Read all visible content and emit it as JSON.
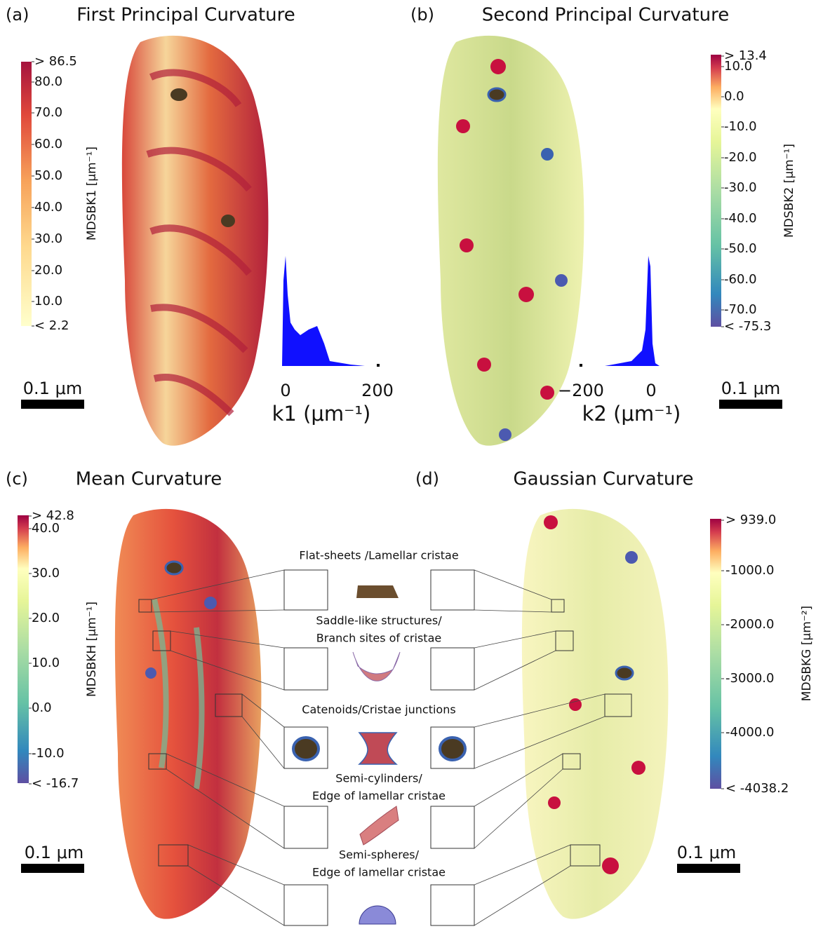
{
  "panels": [
    {
      "label": "(a)",
      "title": "First Principal Curvature",
      "colorbar_label": "MDSBK1 [μm⁻¹]",
      "colorbar_ticks": [
        "> 86.5",
        "80.0",
        "70.0",
        "60.0",
        "50.0",
        "40.0",
        "30.0",
        "20.0",
        "10.0",
        "< 2.2"
      ],
      "scale_bar": "0.1 μm",
      "histogram": {
        "ticks": [
          "0",
          "200"
        ],
        "xlabel": "k1 (μm⁻¹)"
      }
    },
    {
      "label": "(b)",
      "title": "Second Principal Curvature",
      "colorbar_label": "MDSBK2 [μm⁻¹]",
      "colorbar_ticks": [
        "> 13.4",
        "10.0",
        "0.0",
        "-10.0",
        "-20.0",
        "-30.0",
        "-40.0",
        "-50.0",
        "-60.0",
        "-70.0",
        "< -75.3"
      ],
      "scale_bar": "0.1 μm",
      "histogram": {
        "ticks": [
          "−200",
          "0"
        ],
        "xlabel": "k2 (μm⁻¹)"
      }
    },
    {
      "label": "(c)",
      "title": "Mean Curvature",
      "colorbar_label": "MDSBKH [μm⁻¹]",
      "colorbar_ticks": [
        "> 42.8",
        "40.0",
        "30.0",
        "20.0",
        "10.0",
        "0.0",
        "-10.0",
        "< -16.7"
      ],
      "scale_bar": "0.1 μm"
    },
    {
      "label": "(d)",
      "title": "Gaussian Curvature",
      "colorbar_label": "MDSBKG [μm⁻²]",
      "colorbar_ticks": [
        "> 939.0",
        "-1000.0",
        "-2000.0",
        "-3000.0",
        "-4000.0",
        "< -4038.2"
      ],
      "scale_bar": "0.1 μm"
    }
  ],
  "insets": [
    {
      "lines": [
        "Flat-sheets /Lamellar cristae"
      ]
    },
    {
      "lines": [
        "Saddle-like structures/",
        "Branch sites of cristae"
      ]
    },
    {
      "lines": [
        "Catenoids/Cristae junctions"
      ]
    },
    {
      "lines": [
        "Semi-cylinders/",
        "Edge of lamellar cristae"
      ]
    },
    {
      "lines": [
        "Semi-spheres/",
        "Edge of lamellar cristae"
      ]
    }
  ]
}
